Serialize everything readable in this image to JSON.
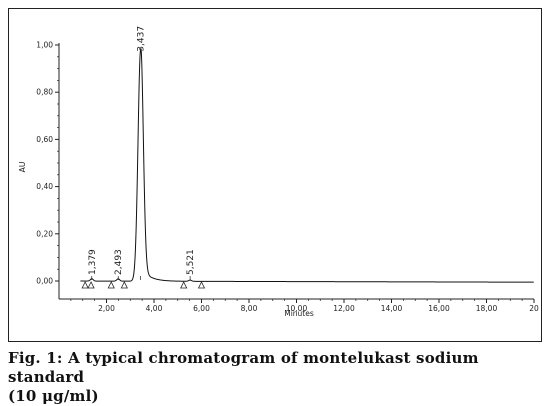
{
  "chart_data": {
    "type": "line",
    "ylabel": "AU",
    "xlabel": "Minutes",
    "xlim": [
      0,
      20
    ],
    "ylim": [
      -0.05,
      1.0
    ],
    "y_ticks": [
      0.0,
      0.2,
      0.4,
      0.6,
      0.8,
      1.0
    ],
    "y_tick_labels": [
      "0,00",
      "0,20",
      "0,40",
      "0,60",
      "0,80",
      "1,00"
    ],
    "x_ticks": [
      2,
      4,
      6,
      8,
      10,
      12,
      14,
      16,
      18,
      20
    ],
    "x_tick_labels": [
      "2,00",
      "4,00",
      "6,00",
      "8,00",
      "10,00",
      "12,00",
      "14,00",
      "16,00",
      "18,00",
      "20"
    ],
    "peaks": [
      {
        "label": "1,379",
        "time": 1.379,
        "height": 0.01
      },
      {
        "label": "2,493",
        "time": 2.493,
        "height": 0.01
      },
      {
        "label": "3,437",
        "time": 3.437,
        "height": 0.98
      },
      {
        "label": "5,521",
        "time": 5.521,
        "height": 0.005
      }
    ],
    "markers": [
      1.1,
      1.35,
      2.2,
      2.75,
      5.25,
      6.0
    ],
    "baseline_end": -0.005
  },
  "caption": {
    "line1": "Fig. 1: A typical chromatogram of montelukast sodium standard",
    "line2": "(10 μg/ml)"
  }
}
